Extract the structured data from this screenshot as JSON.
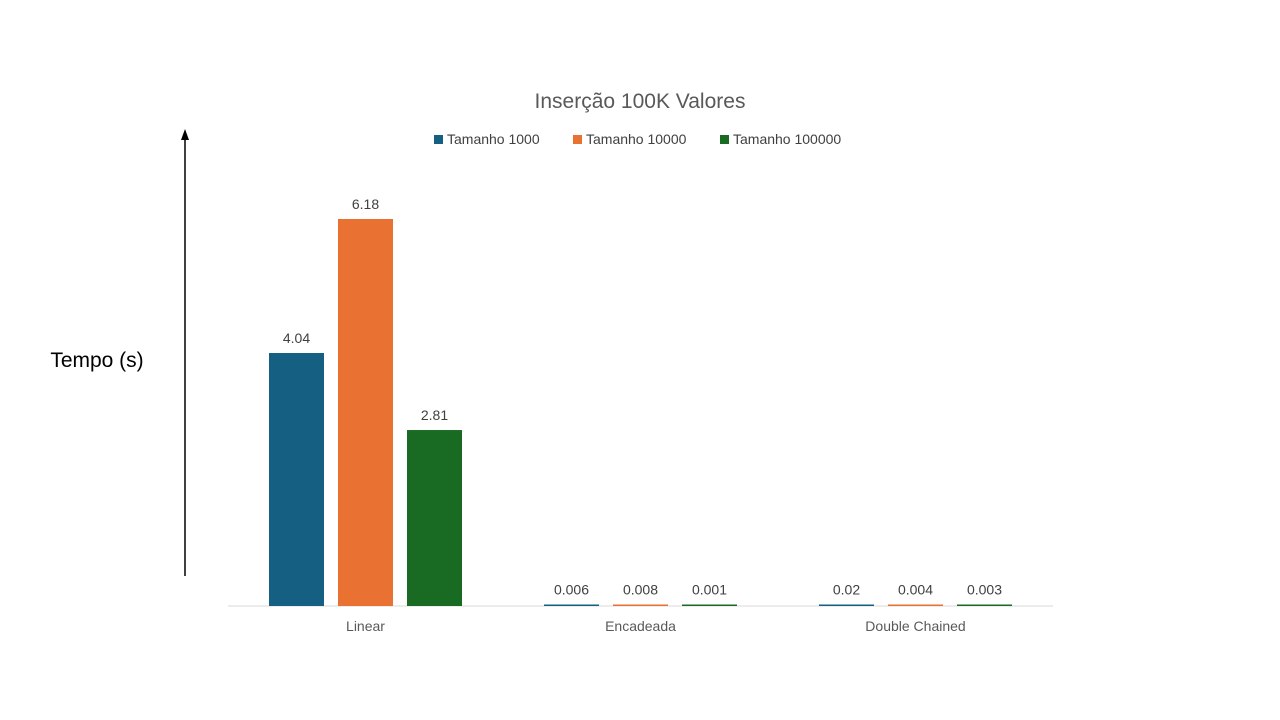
{
  "chart_data": {
    "type": "bar",
    "title": "Inserção 100K Valores",
    "xlabel": "",
    "ylabel": "Tempo (s)",
    "categories": [
      "Linear",
      "Encadeada",
      "Double Chained"
    ],
    "series": [
      {
        "name": "Tamanho 1000",
        "values": [
          4.04,
          0.006,
          0.02
        ],
        "labels": [
          "4.04",
          "0.006",
          "0.02"
        ],
        "color": "#156082"
      },
      {
        "name": "Tamanho 10000",
        "values": [
          6.18,
          0.008,
          0.004
        ],
        "labels": [
          "6.18",
          "0.008",
          "0.004"
        ],
        "color": "#E97132"
      },
      {
        "name": "Tamanho 100000",
        "values": [
          2.81,
          0.001,
          0.003
        ],
        "labels": [
          "2.81",
          "0.001",
          "0.003"
        ],
        "color": "#196B24"
      }
    ],
    "ylim": [
      0,
      6.18
    ],
    "grid": false,
    "legend": "top-center"
  }
}
